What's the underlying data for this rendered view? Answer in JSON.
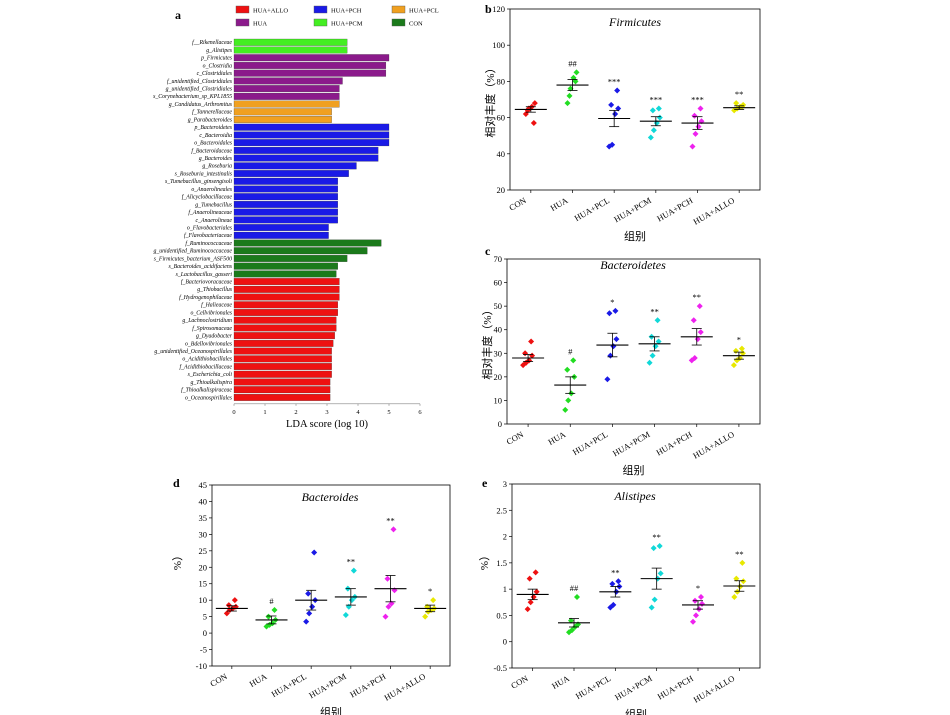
{
  "panels": {
    "a": "a",
    "b": "b",
    "c": "c",
    "d": "d",
    "e": "e"
  },
  "chart_data": [
    {
      "panel": "a",
      "type": "bar",
      "orientation": "horizontal",
      "xlabel": "LDA score (log 10)",
      "xlim": [
        0,
        6
      ],
      "xticks": [
        0,
        1,
        2,
        3,
        4,
        5,
        6
      ],
      "legend_position": "top",
      "groups": [
        {
          "name": "HUA+ALLO",
          "color": "#ee1111"
        },
        {
          "name": "HUA+PCH",
          "color": "#1a1ae6"
        },
        {
          "name": "HUA+PCL",
          "color": "#f0a020"
        },
        {
          "name": "HUA",
          "color": "#8b1a8b"
        },
        {
          "name": "HUA+PCM",
          "color": "#44ee22"
        },
        {
          "name": "CON",
          "color": "#1b7a1b"
        }
      ],
      "bars": [
        {
          "label": "f__Rikenellaceae",
          "value": 3.65,
          "group": "HUA+PCM"
        },
        {
          "label": "g_Alistipes",
          "value": 3.65,
          "group": "HUA+PCM"
        },
        {
          "label": "p_Firmicutes",
          "value": 5.0,
          "group": "HUA"
        },
        {
          "label": "o_Clostridia",
          "value": 4.9,
          "group": "HUA"
        },
        {
          "label": "c_Clostridiales",
          "value": 4.9,
          "group": "HUA"
        },
        {
          "label": "f_unidentified_Clostridiales",
          "value": 3.5,
          "group": "HUA"
        },
        {
          "label": "g_unidentified_Clostridiales",
          "value": 3.4,
          "group": "HUA"
        },
        {
          "label": "s_Corynebacterium_sp_KPL1855",
          "value": 3.4,
          "group": "HUA"
        },
        {
          "label": "g_Candidatus_Arthromitus",
          "value": 3.4,
          "group": "HUA+PCL"
        },
        {
          "label": "f_Tannerellaceae",
          "value": 3.15,
          "group": "HUA+PCL"
        },
        {
          "label": "g_Parabacteroides",
          "value": 3.15,
          "group": "HUA+PCL"
        },
        {
          "label": "p_Bacteroidetes",
          "value": 5.0,
          "group": "HUA+PCH"
        },
        {
          "label": "c_Bacteroidia",
          "value": 5.0,
          "group": "HUA+PCH"
        },
        {
          "label": "o_Bacteroidales",
          "value": 5.0,
          "group": "HUA+PCH"
        },
        {
          "label": "f_Bacteroidaceae",
          "value": 4.65,
          "group": "HUA+PCH"
        },
        {
          "label": "g_Bacteroides",
          "value": 4.65,
          "group": "HUA+PCH"
        },
        {
          "label": "g_Roseburia",
          "value": 3.95,
          "group": "HUA+PCH"
        },
        {
          "label": "s_Roseburia_intestinalis",
          "value": 3.7,
          "group": "HUA+PCH"
        },
        {
          "label": "s_Tumebacillus_ginsengisoli",
          "value": 3.35,
          "group": "HUA+PCH"
        },
        {
          "label": "o_Anaerolineales",
          "value": 3.35,
          "group": "HUA+PCH"
        },
        {
          "label": "f_Alicyclobacillaceae",
          "value": 3.35,
          "group": "HUA+PCH"
        },
        {
          "label": "g_Tumebacillus",
          "value": 3.35,
          "group": "HUA+PCH"
        },
        {
          "label": "f_Anaerolineaceae",
          "value": 3.35,
          "group": "HUA+PCH"
        },
        {
          "label": "c_Anaerolineae",
          "value": 3.35,
          "group": "HUA+PCH"
        },
        {
          "label": "o_Flavobacteriales",
          "value": 3.05,
          "group": "HUA+PCH"
        },
        {
          "label": "f_Flavobacteriaceae",
          "value": 3.05,
          "group": "HUA+PCH"
        },
        {
          "label": "f_Ruminococcaceae",
          "value": 4.75,
          "group": "CON"
        },
        {
          "label": "g_unidentified_Ruminococcaceae",
          "value": 4.3,
          "group": "CON"
        },
        {
          "label": "s_Firmicutes_bacterium_ASF500",
          "value": 3.65,
          "group": "CON"
        },
        {
          "label": "s_Bacteroides_acidifaciens",
          "value": 3.35,
          "group": "CON"
        },
        {
          "label": "s_Lactobacillus_gasseri",
          "value": 3.3,
          "group": "CON"
        },
        {
          "label": "f_Bacteriovoracaceae",
          "value": 3.4,
          "group": "HUA+ALLO"
        },
        {
          "label": "g_Thiobacillus",
          "value": 3.4,
          "group": "HUA+ALLO"
        },
        {
          "label": "f_Hydrogenophilaceae",
          "value": 3.4,
          "group": "HUA+ALLO"
        },
        {
          "label": "f_Halieaceae",
          "value": 3.35,
          "group": "HUA+ALLO"
        },
        {
          "label": "o_Cellvibrionales",
          "value": 3.35,
          "group": "HUA+ALLO"
        },
        {
          "label": "g_Lachnoclostridium",
          "value": 3.3,
          "group": "HUA+ALLO"
        },
        {
          "label": "f_Spirosomaceae",
          "value": 3.3,
          "group": "HUA+ALLO"
        },
        {
          "label": "g_Dyadobacter",
          "value": 3.25,
          "group": "HUA+ALLO"
        },
        {
          "label": "o_Bdellovibrionales",
          "value": 3.2,
          "group": "HUA+ALLO"
        },
        {
          "label": "g_unidentified_Oceanospirillales",
          "value": 3.15,
          "group": "HUA+ALLO"
        },
        {
          "label": "o_Acidithiobacillales",
          "value": 3.15,
          "group": "HUA+ALLO"
        },
        {
          "label": "f_Acidithiobacillaceae",
          "value": 3.15,
          "group": "HUA+ALLO"
        },
        {
          "label": "s_Escherichia_coli",
          "value": 3.15,
          "group": "HUA+ALLO"
        },
        {
          "label": "g_Thioalkalispira",
          "value": 3.1,
          "group": "HUA+ALLO"
        },
        {
          "label": "f_Thioalkalispiraceae",
          "value": 3.1,
          "group": "HUA+ALLO"
        },
        {
          "label": "o_Oceanospirillales",
          "value": 3.1,
          "group": "HUA+ALLO"
        }
      ]
    },
    {
      "panel": "b",
      "type": "scatter",
      "title": "Firmicutes",
      "xlabel": "组别",
      "ylabel": "相对丰度（%）",
      "ylim": [
        20,
        120
      ],
      "yticks": [
        20,
        40,
        60,
        80,
        100,
        120
      ],
      "categories": [
        "CON",
        "HUA",
        "HUA+PCL",
        "HUA+PCM",
        "HUA+PCH",
        "HUA+ALLO"
      ],
      "colors": [
        "#ee1111",
        "#22dd22",
        "#1a1ae6",
        "#11d8d8",
        "#ee22ee",
        "#e8e800"
      ],
      "means": [
        64.5,
        78,
        59.5,
        58,
        57,
        65.5
      ],
      "sem": [
        1.5,
        3,
        4.5,
        2.5,
        3.5,
        1
      ],
      "annotations": [
        "",
        "##",
        "***",
        "***",
        "***",
        "**"
      ],
      "points": [
        [
          62,
          65,
          66,
          68,
          64,
          57
        ],
        [
          68,
          76,
          82,
          85,
          72,
          80
        ],
        [
          44,
          45,
          62,
          65,
          67,
          75
        ],
        [
          49,
          53,
          57,
          60,
          64,
          65
        ],
        [
          44,
          51,
          55,
          58,
          61,
          65
        ],
        [
          64,
          65,
          66,
          67,
          68,
          66
        ]
      ]
    },
    {
      "panel": "c",
      "type": "scatter",
      "title": "Bacteroidetes",
      "xlabel": "组别",
      "ylabel": "相对丰度（%）",
      "ylim": [
        0,
        70
      ],
      "yticks": [
        0,
        10,
        20,
        30,
        40,
        50,
        60,
        70
      ],
      "categories": [
        "CON",
        "HUA",
        "HUA+PCL",
        "HUA+PCM",
        "HUA+PCH",
        "HUA+ALLO"
      ],
      "colors": [
        "#ee1111",
        "#22dd22",
        "#1a1ae6",
        "#11d8d8",
        "#ee22ee",
        "#e8e800"
      ],
      "means": [
        28,
        16.5,
        33.5,
        34,
        37,
        29
      ],
      "sem": [
        1.5,
        3.5,
        5,
        3,
        3.5,
        1.5
      ],
      "annotations": [
        "",
        "#",
        "*",
        "**",
        "**",
        "*"
      ],
      "points": [
        [
          25,
          26,
          27,
          29,
          30,
          35
        ],
        [
          6,
          10,
          13,
          20,
          23,
          27
        ],
        [
          19,
          29,
          33,
          36,
          47,
          48
        ],
        [
          26,
          29,
          33,
          35,
          37,
          44
        ],
        [
          27,
          28,
          36,
          39,
          44,
          50
        ],
        [
          25,
          27,
          28,
          30,
          31,
          32
        ]
      ]
    },
    {
      "panel": "d",
      "type": "scatter",
      "title": "Bacteroides",
      "xlabel": "组别",
      "ylabel": "%）",
      "ylim": [
        -10,
        45
      ],
      "yticks": [
        -10,
        -5,
        0,
        5,
        10,
        15,
        20,
        25,
        30,
        35,
        40,
        45
      ],
      "categories": [
        "CON",
        "HUA",
        "HUA+PCL",
        "HUA+PCM",
        "HUA+PCH",
        "HUA+ALLO"
      ],
      "colors": [
        "#ee1111",
        "#22dd22",
        "#1a1ae6",
        "#11d8d8",
        "#ee22ee",
        "#e8e800"
      ],
      "means": [
        7.5,
        4,
        10,
        11,
        13.5,
        7.5
      ],
      "sem": [
        0.8,
        1.2,
        3,
        2.5,
        4,
        1
      ],
      "annotations": [
        "",
        "#",
        "",
        "**",
        "**",
        "*"
      ],
      "points": [
        [
          6,
          7,
          7.5,
          8,
          8.5,
          10
        ],
        [
          2,
          2.5,
          3,
          4,
          5,
          7
        ],
        [
          3.5,
          6,
          8,
          10,
          12,
          24.5
        ],
        [
          5.5,
          8,
          10,
          11,
          13.5,
          19
        ],
        [
          5,
          8,
          9,
          13,
          16.5,
          31.5
        ],
        [
          5,
          6.5,
          7,
          7.5,
          8,
          10
        ]
      ]
    },
    {
      "panel": "e",
      "type": "scatter",
      "title": "Alistipes",
      "xlabel": "组别",
      "ylabel": "%）",
      "ylim": [
        -0.5,
        3.0
      ],
      "yticks": [
        -0.5,
        0.0,
        0.5,
        1.0,
        1.5,
        2.0,
        2.5,
        3.0
      ],
      "categories": [
        "CON",
        "HUA",
        "HUA+PCL",
        "HUA+PCM",
        "HUA+PCH",
        "HUA+ALLO"
      ],
      "colors": [
        "#ee1111",
        "#22dd22",
        "#1a1ae6",
        "#11d8d8",
        "#ee22ee",
        "#e8e800"
      ],
      "means": [
        0.9,
        0.36,
        0.95,
        1.2,
        0.7,
        1.06
      ],
      "sem": [
        0.1,
        0.08,
        0.1,
        0.2,
        0.08,
        0.1
      ],
      "annotations": [
        "",
        "##",
        "**",
        "**",
        "*",
        "**"
      ],
      "points": [
        [
          0.62,
          0.75,
          0.85,
          0.95,
          1.2,
          1.32
        ],
        [
          0.18,
          0.22,
          0.28,
          0.33,
          0.4,
          0.85
        ],
        [
          0.65,
          0.7,
          0.95,
          1.05,
          1.1,
          1.15
        ],
        [
          0.65,
          0.8,
          1.2,
          1.3,
          1.78,
          1.82
        ],
        [
          0.38,
          0.5,
          0.62,
          0.72,
          0.78,
          0.85
        ],
        [
          0.85,
          0.95,
          1.05,
          1.15,
          1.2,
          1.5
        ]
      ]
    }
  ]
}
